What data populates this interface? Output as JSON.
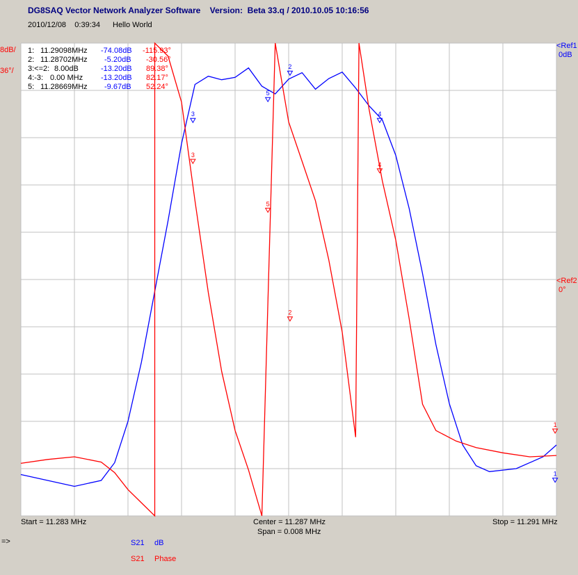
{
  "window": {
    "title": "DG8SAQ Vector Network Analyzer Software    Version:  Beta 33.q / 2010.10.05 10:16:56",
    "date_time": "2010/12/08    0:39:34",
    "comment": "Hello World"
  },
  "scale": {
    "left_top_blue": "8dB/",
    "left_top_red": "36°/",
    "ref1_label": "<Ref1",
    "ref1_value": "0dB",
    "ref2_label": "<Ref2",
    "ref2_value": "0°"
  },
  "markers": [
    {
      "id": "1:",
      "freq": "11.29098MHz",
      "db": "-74.08dB",
      "phase": "-115.93°"
    },
    {
      "id": "2:",
      "freq": "11.28702MHz",
      "db": "-5.20dB",
      "phase": "-30.56°"
    },
    {
      "id": "3:<=2:",
      "freq": "8.00dB",
      "db": "-13.20dB",
      "phase": "89.38°"
    },
    {
      "id": "4:-3:",
      "freq": "0.00 MHz",
      "db": "-13.20dB",
      "phase": "82.17°"
    },
    {
      "id": "5:",
      "freq": "11.28669MHz",
      "db": "-9.67dB",
      "phase": "52.24°"
    }
  ],
  "axis": {
    "start": "Start = 11.283 MHz",
    "center": "Center = 11.287 MHz",
    "span": "Span = 0.008 MHz",
    "stop": "Stop = 11.291 MHz"
  },
  "legend": [
    {
      "trace": "S21",
      "unit": "dB",
      "color": "#0000ff"
    },
    {
      "trace": "S21",
      "unit": "Phase",
      "color": "#ff0000"
    }
  ],
  "footer_arrow": "=>",
  "chart_data": {
    "type": "line",
    "x_unit": "MHz",
    "xlim": [
      11.283,
      11.291
    ],
    "grid": true,
    "series": [
      {
        "name": "S21 dB",
        "color": "#0000ff",
        "ylim": [
          -80,
          0
        ],
        "x": [
          11.283,
          11.2834,
          11.2838,
          11.2842,
          11.2844,
          11.2846,
          11.2848,
          11.285,
          11.2852,
          11.2854,
          11.2856,
          11.2858,
          11.286,
          11.2862,
          11.2864,
          11.2866,
          11.2868,
          11.287,
          11.2872,
          11.2874,
          11.2876,
          11.2878,
          11.288,
          11.2882,
          11.2884,
          11.2886,
          11.2888,
          11.289,
          11.2892,
          11.2894,
          11.2896,
          11.2898,
          11.29,
          11.2904,
          11.2908,
          11.291
        ],
        "y": [
          -73,
          -74,
          -75,
          -74,
          -71,
          -64,
          -54,
          -42,
          -30,
          -17,
          -7,
          -5.6,
          -6.2,
          -5.8,
          -4.2,
          -7.3,
          -8.6,
          -6.1,
          -5.0,
          -7.8,
          -6.0,
          -4.9,
          -7.6,
          -10.6,
          -13.0,
          -19,
          -28,
          -39,
          -51,
          -61,
          -68,
          -71.5,
          -72.5,
          -72,
          -70,
          -68
        ]
      },
      {
        "name": "S21 Phase",
        "color": "#ff0000",
        "ylim": [
          -180,
          180
        ],
        "x": [
          11.283,
          11.2834,
          11.2838,
          11.2842,
          11.2844,
          11.2846,
          11.2848,
          11.285,
          11.2850001,
          11.2852,
          11.2854,
          11.2856,
          11.2858,
          11.286,
          11.2862,
          11.2864,
          11.2866,
          11.2868,
          11.287,
          11.2872,
          11.2874,
          11.2876,
          11.2878,
          11.288,
          11.28805,
          11.2882,
          11.2884,
          11.2886,
          11.2888,
          11.289,
          11.2892,
          11.2895,
          11.2898,
          11.2902,
          11.2906,
          11.291
        ],
        "y": [
          -140,
          -137,
          -135,
          -139,
          -147,
          -160,
          -170,
          -180,
          180,
          170,
          135,
          60,
          -10,
          -70,
          -115,
          -145,
          -180,
          180,
          120,
          90,
          60,
          15,
          -40,
          -120,
          180,
          130,
          75,
          30,
          -30,
          -95,
          -115,
          -123,
          -128,
          -132,
          -135,
          -134
        ]
      }
    ],
    "trace_markers": [
      {
        "trace": "S21 dB",
        "label": "1",
        "x": 11.29098,
        "y": -74.08
      },
      {
        "trace": "S21 dB",
        "label": "2",
        "x": 11.28702,
        "y": -5.2
      },
      {
        "trace": "S21 dB",
        "label": "3",
        "x": 11.28557,
        "y": -13.2
      },
      {
        "trace": "S21 dB",
        "label": "4",
        "x": 11.28836,
        "y": -13.2
      },
      {
        "trace": "S21 dB",
        "label": "5",
        "x": 11.28669,
        "y": -9.67
      },
      {
        "trace": "S21 Phase",
        "label": "1",
        "x": 11.29098,
        "y": -115.93
      },
      {
        "trace": "S21 Phase",
        "label": "2",
        "x": 11.28702,
        "y": -30.56
      },
      {
        "trace": "S21 Phase",
        "label": "3",
        "x": 11.28557,
        "y": 89.38
      },
      {
        "trace": "S21 Phase",
        "label": "4",
        "x": 11.28836,
        "y": 82.17
      },
      {
        "trace": "S21 Phase",
        "label": "5",
        "x": 11.28669,
        "y": 52.24
      }
    ]
  }
}
